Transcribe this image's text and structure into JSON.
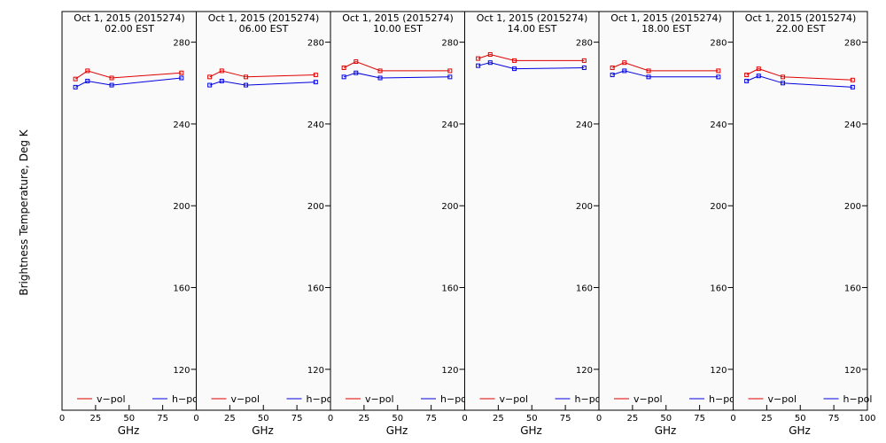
{
  "chart_data": {
    "type": "line",
    "ylabel": "Brightness Temperature, Deg K",
    "xlabel": "GHz",
    "xlim": [
      0,
      100
    ],
    "ylim": [
      100,
      295
    ],
    "x_ticks": [
      0,
      25,
      50,
      75,
      100
    ],
    "y_ticks": [
      120,
      160,
      200,
      240,
      280
    ],
    "grid": false,
    "legend": [
      {
        "name": "v-pol",
        "label": "v−pol",
        "color": "#e00000"
      },
      {
        "name": "h-pol",
        "label": "h−pol",
        "color": "#0000e0"
      }
    ],
    "x": [
      10,
      19,
      37,
      89
    ],
    "panels": [
      {
        "date": "Oct  1, 2015 (2015274)",
        "time": "02.00 EST",
        "series": [
          {
            "name": "v-pol",
            "values": [
              262,
              266,
              262.5,
              265
            ]
          },
          {
            "name": "h-pol",
            "values": [
              258,
              261,
              259,
              262.5
            ]
          }
        ]
      },
      {
        "date": "Oct  1, 2015 (2015274)",
        "time": "06.00 EST",
        "series": [
          {
            "name": "v-pol",
            "values": [
              263,
              266,
              263,
              264
            ]
          },
          {
            "name": "h-pol",
            "values": [
              259,
              261,
              259,
              260.5
            ]
          }
        ]
      },
      {
        "date": "Oct  1, 2015 (2015274)",
        "time": "10.00 EST",
        "series": [
          {
            "name": "v-pol",
            "values": [
              267.5,
              270.5,
              266,
              266
            ]
          },
          {
            "name": "h-pol",
            "values": [
              263,
              265,
              262.5,
              263
            ]
          }
        ]
      },
      {
        "date": "Oct  1, 2015 (2015274)",
        "time": "14.00 EST",
        "series": [
          {
            "name": "v-pol",
            "values": [
              272,
              274,
              271,
              271
            ]
          },
          {
            "name": "h-pol",
            "values": [
              268.5,
              270,
              267,
              267.5
            ]
          }
        ]
      },
      {
        "date": "Oct  1, 2015 (2015274)",
        "time": "18.00 EST",
        "series": [
          {
            "name": "v-pol",
            "values": [
              267.5,
              270,
              266,
              266
            ]
          },
          {
            "name": "h-pol",
            "values": [
              264,
              266,
              263,
              263
            ]
          }
        ]
      },
      {
        "date": "Oct  1, 2015 (2015274)",
        "time": "22.00 EST",
        "series": [
          {
            "name": "v-pol",
            "values": [
              264,
              267,
              263,
              261.5
            ]
          },
          {
            "name": "h-pol",
            "values": [
              261,
              263.5,
              260,
              258
            ]
          }
        ]
      }
    ]
  }
}
